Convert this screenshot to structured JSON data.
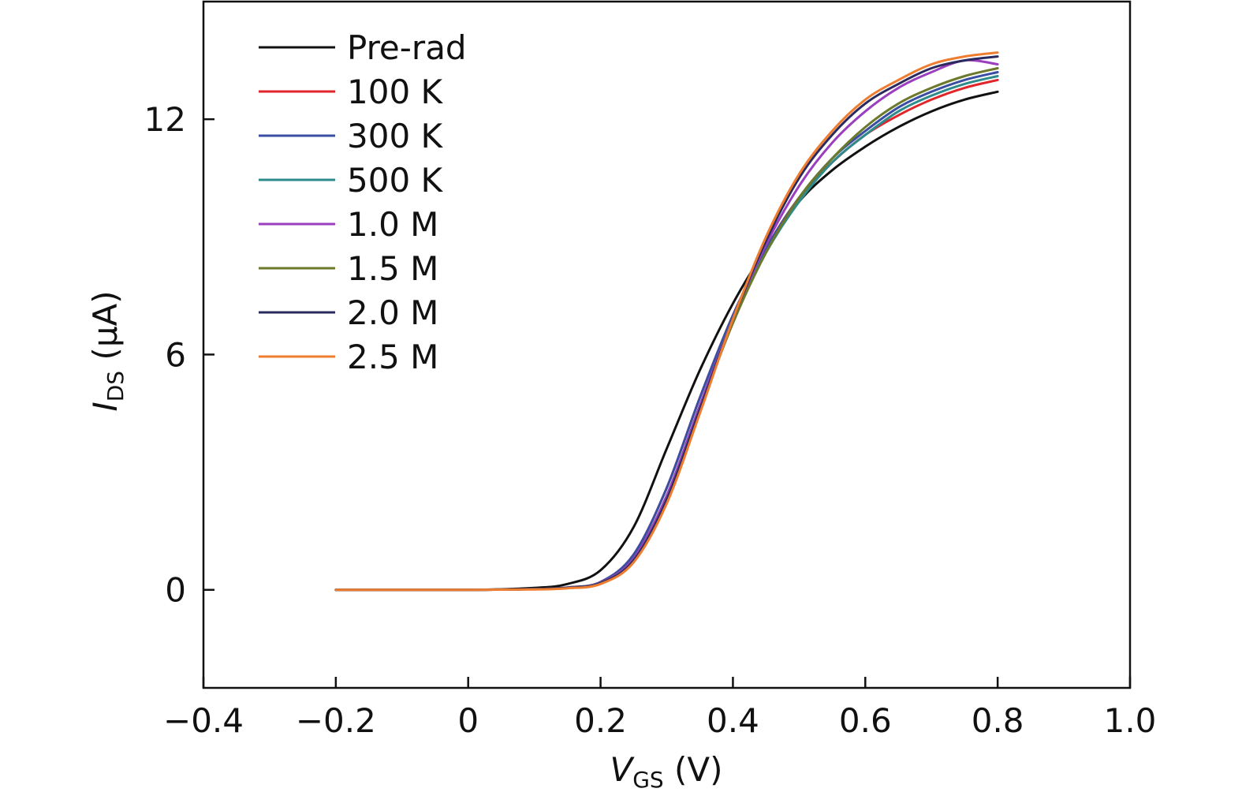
{
  "chart_data": {
    "type": "line",
    "xlabel": {
      "main": "V",
      "sub": "GS",
      "unit": " (V)"
    },
    "ylabel": {
      "main": "I",
      "sub": "DS",
      "unit": " (μA)"
    },
    "xlim": [
      -0.4,
      1.0
    ],
    "ylim": [
      -2.5,
      15
    ],
    "xticks": [
      -0.4,
      -0.2,
      0,
      0.2,
      0.4,
      0.6,
      0.8,
      1.0
    ],
    "xtick_labels": [
      "−0.4",
      "−0.2",
      "0",
      "0.2",
      "0.4",
      "0.6",
      "0.8",
      "1.0"
    ],
    "yticks": [
      0,
      6,
      12
    ],
    "ytick_labels": [
      "0",
      "6",
      "12"
    ],
    "grid": false,
    "legend_position": "top-left",
    "series": [
      {
        "name": "Pre-rad",
        "color": "#111111",
        "x": [
          -0.2,
          0.0,
          0.1,
          0.15,
          0.2,
          0.25,
          0.3,
          0.35,
          0.4,
          0.45,
          0.5,
          0.55,
          0.6,
          0.65,
          0.7,
          0.75,
          0.8
        ],
        "y": [
          0,
          0,
          0.05,
          0.15,
          0.5,
          1.6,
          3.6,
          5.6,
          7.3,
          8.7,
          9.9,
          10.7,
          11.3,
          11.8,
          12.2,
          12.5,
          12.7
        ]
      },
      {
        "name": "100 K",
        "color": "#e0262b",
        "x": [
          -0.2,
          0.0,
          0.1,
          0.15,
          0.2,
          0.25,
          0.3,
          0.35,
          0.4,
          0.45,
          0.5,
          0.55,
          0.6,
          0.65,
          0.7,
          0.75,
          0.8
        ],
        "y": [
          0,
          0,
          0.02,
          0.06,
          0.2,
          0.9,
          2.6,
          4.9,
          7.0,
          8.7,
          10.0,
          10.9,
          11.6,
          12.1,
          12.5,
          12.8,
          13.0
        ]
      },
      {
        "name": "300 K",
        "color": "#3a4fa3",
        "x": [
          -0.2,
          0.0,
          0.1,
          0.15,
          0.2,
          0.25,
          0.3,
          0.35,
          0.4,
          0.45,
          0.5,
          0.55,
          0.6,
          0.65,
          0.7,
          0.75,
          0.8
        ],
        "y": [
          0,
          0,
          0.02,
          0.06,
          0.2,
          0.9,
          2.6,
          4.9,
          7.0,
          8.7,
          10.0,
          11.0,
          11.7,
          12.3,
          12.7,
          13.0,
          13.2
        ]
      },
      {
        "name": "500 K",
        "color": "#2e8b8b",
        "x": [
          -0.2,
          0.0,
          0.1,
          0.15,
          0.2,
          0.25,
          0.3,
          0.35,
          0.4,
          0.45,
          0.5,
          0.55,
          0.6,
          0.65,
          0.7,
          0.75,
          0.8
        ],
        "y": [
          0,
          0,
          0.02,
          0.05,
          0.18,
          0.8,
          2.4,
          4.7,
          6.9,
          8.6,
          9.9,
          10.9,
          11.6,
          12.2,
          12.6,
          12.9,
          13.1
        ]
      },
      {
        "name": "1.0 M",
        "color": "#9b3fbf",
        "x": [
          -0.2,
          0.0,
          0.1,
          0.15,
          0.2,
          0.25,
          0.3,
          0.35,
          0.4,
          0.45,
          0.5,
          0.55,
          0.6,
          0.65,
          0.7,
          0.75,
          0.8
        ],
        "y": [
          0,
          0,
          0.02,
          0.05,
          0.18,
          0.8,
          2.4,
          4.7,
          6.9,
          8.8,
          10.3,
          11.4,
          12.2,
          12.8,
          13.2,
          13.5,
          13.4
        ]
      },
      {
        "name": "1.5 M",
        "color": "#6b7a2a",
        "x": [
          -0.2,
          0.0,
          0.1,
          0.15,
          0.2,
          0.25,
          0.3,
          0.35,
          0.4,
          0.45,
          0.5,
          0.55,
          0.6,
          0.65,
          0.7,
          0.75,
          0.8
        ],
        "y": [
          0,
          0,
          0.02,
          0.05,
          0.17,
          0.75,
          2.3,
          4.6,
          6.8,
          8.6,
          10.0,
          11.0,
          11.8,
          12.4,
          12.8,
          13.1,
          13.3
        ]
      },
      {
        "name": "2.0 M",
        "color": "#2a2a5e",
        "x": [
          -0.2,
          0.0,
          0.1,
          0.15,
          0.2,
          0.25,
          0.3,
          0.35,
          0.4,
          0.45,
          0.5,
          0.55,
          0.6,
          0.65,
          0.7,
          0.75,
          0.8
        ],
        "y": [
          0,
          0,
          0.02,
          0.05,
          0.17,
          0.75,
          2.3,
          4.6,
          6.9,
          8.9,
          10.5,
          11.6,
          12.4,
          12.9,
          13.3,
          13.5,
          13.6
        ]
      },
      {
        "name": "2.5 M",
        "color": "#ef7d2f",
        "x": [
          -0.2,
          0.0,
          0.1,
          0.15,
          0.2,
          0.25,
          0.3,
          0.35,
          0.4,
          0.45,
          0.5,
          0.55,
          0.6,
          0.65,
          0.7,
          0.75,
          0.8
        ],
        "y": [
          0,
          0,
          0.01,
          0.04,
          0.15,
          0.7,
          2.2,
          4.5,
          6.9,
          9.0,
          10.6,
          11.7,
          12.5,
          13.0,
          13.4,
          13.6,
          13.7
        ]
      }
    ]
  }
}
